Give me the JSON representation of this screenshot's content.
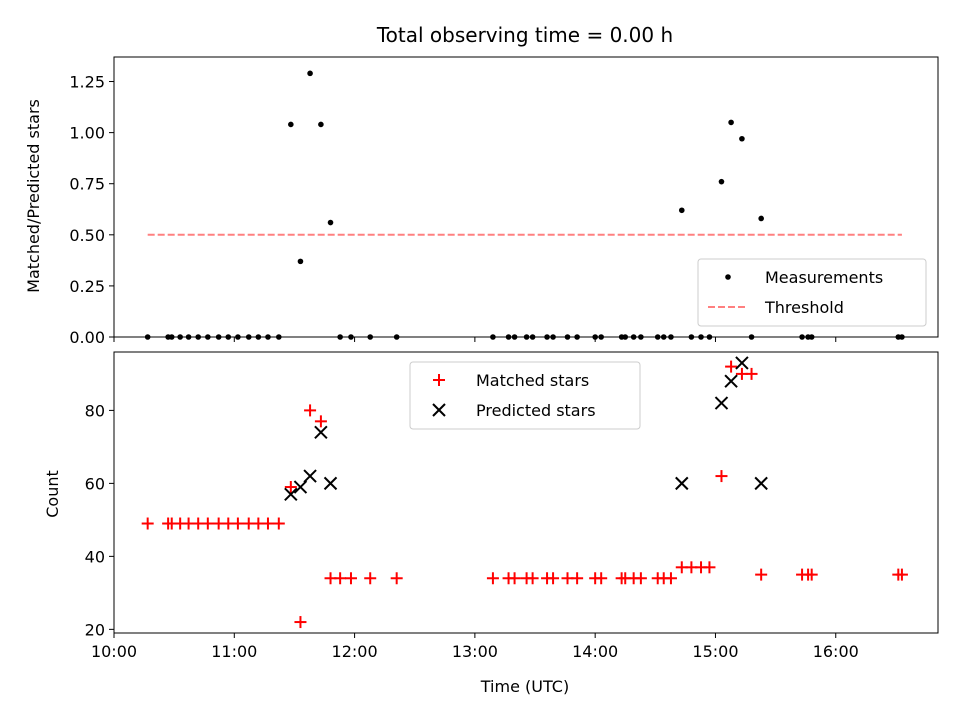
{
  "chart_data": [
    {
      "type": "scatter",
      "title": "Total observing time = 0.00 h",
      "xlabel": "",
      "ylabel": "Matched/Predicted stars",
      "xlim": [
        10.0,
        16.85
      ],
      "ylim": [
        0,
        1.37
      ],
      "yticks": [
        "0.00",
        "0.25",
        "0.50",
        "0.75",
        "1.00",
        "1.25"
      ],
      "ytick_values": [
        0,
        0.25,
        0.5,
        0.75,
        1.0,
        1.25
      ],
      "legend_placement": "lower-right",
      "series": [
        {
          "name": "Measurements",
          "color": "#000000",
          "marker": "dot",
          "points": [
            [
              10.28,
              0
            ],
            [
              10.45,
              0
            ],
            [
              10.48,
              0
            ],
            [
              10.55,
              0
            ],
            [
              10.62,
              0
            ],
            [
              10.7,
              0
            ],
            [
              10.78,
              0
            ],
            [
              10.87,
              0
            ],
            [
              10.95,
              0
            ],
            [
              11.03,
              0
            ],
            [
              11.12,
              0
            ],
            [
              11.2,
              0
            ],
            [
              11.28,
              0
            ],
            [
              11.37,
              0
            ],
            [
              11.47,
              1.04
            ],
            [
              11.55,
              0.37
            ],
            [
              11.63,
              1.29
            ],
            [
              11.72,
              1.04
            ],
            [
              11.8,
              0.56
            ],
            [
              11.88,
              0
            ],
            [
              11.97,
              0
            ],
            [
              12.13,
              0
            ],
            [
              12.35,
              0
            ],
            [
              13.15,
              0
            ],
            [
              13.28,
              0
            ],
            [
              13.33,
              0
            ],
            [
              13.43,
              0
            ],
            [
              13.48,
              0
            ],
            [
              13.6,
              0
            ],
            [
              13.65,
              0
            ],
            [
              13.77,
              0
            ],
            [
              13.85,
              0
            ],
            [
              14.0,
              0
            ],
            [
              14.05,
              0
            ],
            [
              14.22,
              0
            ],
            [
              14.25,
              0
            ],
            [
              14.32,
              0
            ],
            [
              14.38,
              0
            ],
            [
              14.52,
              0
            ],
            [
              14.57,
              0
            ],
            [
              14.63,
              0
            ],
            [
              14.72,
              0.62
            ],
            [
              14.8,
              0
            ],
            [
              14.88,
              0
            ],
            [
              14.95,
              0
            ],
            [
              15.05,
              0.76
            ],
            [
              15.13,
              1.05
            ],
            [
              15.22,
              0.97
            ],
            [
              15.3,
              0
            ],
            [
              15.38,
              0.58
            ],
            [
              15.72,
              0
            ],
            [
              15.77,
              0
            ],
            [
              15.8,
              0
            ],
            [
              16.52,
              0
            ],
            [
              16.55,
              0
            ]
          ]
        },
        {
          "name": "Threshold",
          "color": "#ff8080",
          "style": "dashed",
          "points": [
            [
              10.28,
              0.5
            ],
            [
              16.55,
              0.5
            ]
          ]
        }
      ]
    },
    {
      "type": "scatter",
      "title": "",
      "xlabel": "Time (UTC)",
      "ylabel": "Count",
      "xlim": [
        10.0,
        16.85
      ],
      "ylim": [
        19,
        96
      ],
      "yticks": [
        "20",
        "40",
        "60",
        "80"
      ],
      "ytick_values": [
        20,
        40,
        60,
        80
      ],
      "xticks": [
        "10:00",
        "11:00",
        "12:00",
        "13:00",
        "14:00",
        "15:00",
        "16:00"
      ],
      "xtick_values": [
        10,
        11,
        12,
        13,
        14,
        15,
        16
      ],
      "legend_placement": "upper-center",
      "series": [
        {
          "name": "Matched stars",
          "color": "#ff0000",
          "marker": "plus",
          "points": [
            [
              10.28,
              49
            ],
            [
              10.45,
              49
            ],
            [
              10.48,
              49
            ],
            [
              10.55,
              49
            ],
            [
              10.62,
              49
            ],
            [
              10.7,
              49
            ],
            [
              10.78,
              49
            ],
            [
              10.87,
              49
            ],
            [
              10.95,
              49
            ],
            [
              11.03,
              49
            ],
            [
              11.12,
              49
            ],
            [
              11.2,
              49
            ],
            [
              11.28,
              49
            ],
            [
              11.37,
              49
            ],
            [
              11.47,
              59
            ],
            [
              11.55,
              22
            ],
            [
              11.63,
              80
            ],
            [
              11.72,
              77
            ],
            [
              11.8,
              34
            ],
            [
              11.88,
              34
            ],
            [
              11.97,
              34
            ],
            [
              12.13,
              34
            ],
            [
              12.35,
              34
            ],
            [
              13.15,
              34
            ],
            [
              13.28,
              34
            ],
            [
              13.33,
              34
            ],
            [
              13.43,
              34
            ],
            [
              13.48,
              34
            ],
            [
              13.6,
              34
            ],
            [
              13.65,
              34
            ],
            [
              13.77,
              34
            ],
            [
              13.85,
              34
            ],
            [
              14.0,
              34
            ],
            [
              14.05,
              34
            ],
            [
              14.22,
              34
            ],
            [
              14.25,
              34
            ],
            [
              14.32,
              34
            ],
            [
              14.38,
              34
            ],
            [
              14.52,
              34
            ],
            [
              14.57,
              34
            ],
            [
              14.63,
              34
            ],
            [
              14.72,
              37
            ],
            [
              14.8,
              37
            ],
            [
              14.88,
              37
            ],
            [
              14.95,
              37
            ],
            [
              15.05,
              62
            ],
            [
              15.13,
              92
            ],
            [
              15.22,
              90
            ],
            [
              15.3,
              90
            ],
            [
              15.38,
              35
            ],
            [
              15.72,
              35
            ],
            [
              15.77,
              35
            ],
            [
              15.8,
              35
            ],
            [
              16.52,
              35
            ],
            [
              16.55,
              35
            ]
          ]
        },
        {
          "name": "Predicted stars",
          "color": "#000000",
          "marker": "x",
          "points": [
            [
              11.47,
              57
            ],
            [
              11.55,
              59
            ],
            [
              11.63,
              62
            ],
            [
              11.72,
              74
            ],
            [
              11.8,
              60
            ],
            [
              14.72,
              60
            ],
            [
              15.05,
              82
            ],
            [
              15.13,
              88
            ],
            [
              15.22,
              93
            ],
            [
              15.38,
              60
            ]
          ]
        }
      ]
    }
  ]
}
